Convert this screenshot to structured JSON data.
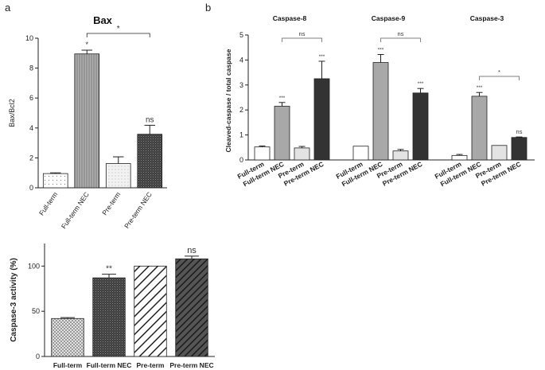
{
  "panel_labels": {
    "a": "a",
    "b": "b"
  },
  "patterns": {
    "dots": "dots-sparse",
    "vlines": "vertical-lines",
    "dots_light": "dots-light",
    "dense": "dense-cross",
    "checker": "checker-fine",
    "diag": "diagonal-right",
    "diag_dark": "diagonal-right-dark"
  },
  "chart_data": [
    {
      "id": "bax",
      "type": "bar",
      "title": "Bax",
      "ylabel": "Bax/Bcl2",
      "ylim": [
        0,
        10
      ],
      "yticks": [
        "0",
        "2",
        "4",
        "6",
        "8",
        "10"
      ],
      "categories": [
        "Full-term",
        "Full-term NEC",
        "Pre-term",
        "Pre-term NEC"
      ],
      "values": [
        0.95,
        8.95,
        1.62,
        3.58
      ],
      "errors": [
        0.05,
        0.25,
        0.45,
        0.6
      ],
      "bar_colors": [
        "#ffffff",
        "#a6a6a6",
        "#f4f4f4",
        "#3a3a3a"
      ],
      "bar_patterns": [
        "dots",
        "vlines",
        "dots_light",
        "dense"
      ],
      "marks": [
        "",
        "*",
        "",
        "ns"
      ],
      "brackets": [
        {
          "from": 1,
          "to": 3,
          "label": "*"
        }
      ]
    },
    {
      "id": "caspase3-activity",
      "type": "bar",
      "title": "",
      "ylabel": "Caspase-3 activity (%)",
      "ylim": [
        0,
        125
      ],
      "yticks": [
        "0",
        "50",
        "100"
      ],
      "categories": [
        "Full-term",
        "Full-term NEC",
        "Pre-term",
        "Pre-term NEC"
      ],
      "values": [
        42,
        87,
        100,
        108
      ],
      "errors": [
        1,
        4,
        0,
        3
      ],
      "bar_colors": [
        "#d0d0d0",
        "#8c8c8c",
        "#ffffff",
        "#3a3a3a"
      ],
      "bar_patterns": [
        "checker",
        "dense",
        "diag",
        "diag_dark"
      ],
      "marks": [
        "",
        "**",
        "",
        "ns"
      ],
      "brackets": []
    },
    {
      "id": "cleaved-caspase",
      "type": "bar",
      "title": "",
      "ylabel": "Cleaved-caspase / total caspase",
      "ylim": [
        0,
        5
      ],
      "yticks": [
        "0",
        "1",
        "2",
        "3",
        "4",
        "5"
      ],
      "groups": [
        {
          "title": "Caspase-8",
          "categories": [
            "Full-term",
            "Full-term NEC",
            "Pre-term",
            "Pre-term NEC"
          ],
          "values": [
            0.52,
            2.15,
            0.48,
            3.25
          ],
          "errors": [
            0.04,
            0.15,
            0.06,
            0.7
          ],
          "marks": [
            "",
            "***",
            "",
            "***"
          ],
          "brackets": [
            {
              "from": 1,
              "to": 3,
              "label": "ns"
            }
          ]
        },
        {
          "title": "Caspase-9",
          "categories": [
            "Full-term",
            "Full-term NEC",
            "Pre-term",
            "Pre-term NEC"
          ],
          "values": [
            0.55,
            3.9,
            0.36,
            2.68
          ],
          "errors": [
            0,
            0.32,
            0.06,
            0.18
          ],
          "marks": [
            "",
            "***",
            "",
            "***"
          ],
          "brackets": [
            {
              "from": 1,
              "to": 3,
              "label": "ns"
            }
          ]
        },
        {
          "title": "Caspase-3",
          "categories": [
            "Full-term",
            "Full-term NEC",
            "Pre-term",
            "Pre-term NEC"
          ],
          "values": [
            0.18,
            2.55,
            0.58,
            0.9
          ],
          "errors": [
            0.04,
            0.15,
            0,
            0.02
          ],
          "marks": [
            "",
            "***",
            "",
            "ns"
          ],
          "brackets": [
            {
              "from": 1,
              "to": 3,
              "label": "*"
            }
          ]
        }
      ],
      "bar_colors": [
        "#ffffff",
        "#a8a8a8",
        "#e3e3e3",
        "#333333"
      ]
    }
  ]
}
